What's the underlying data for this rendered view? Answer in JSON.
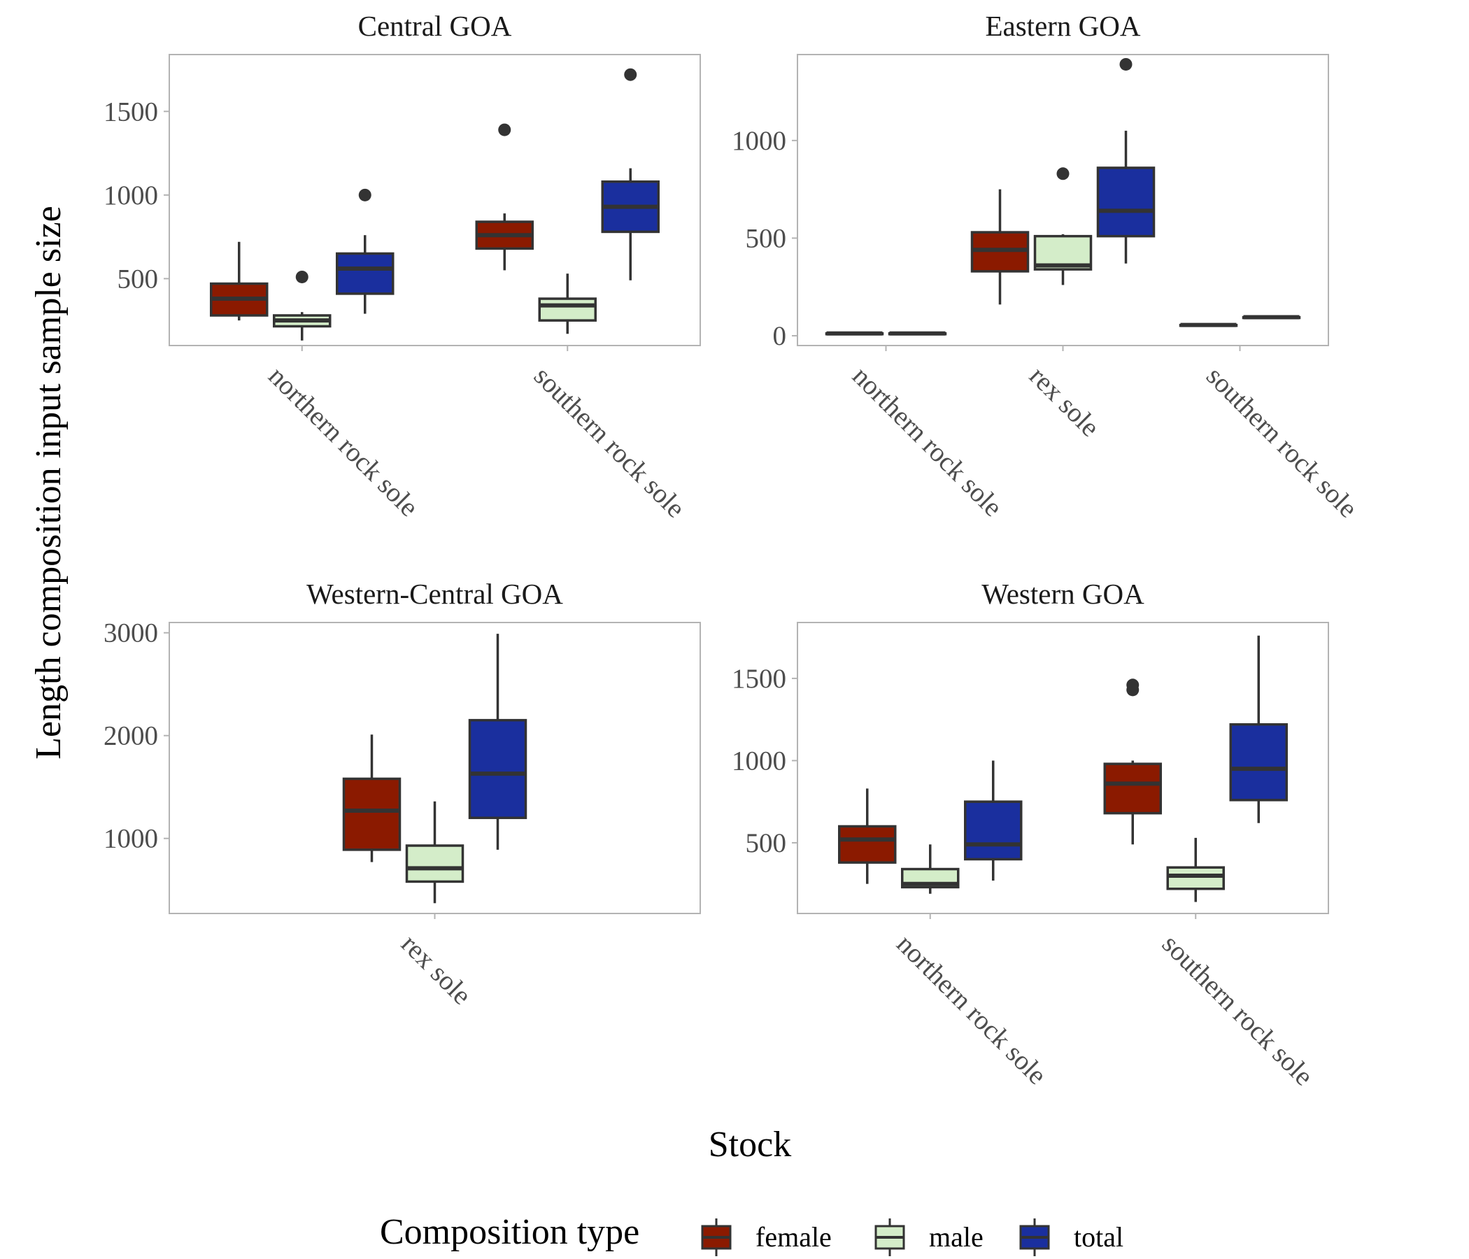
{
  "chart_data": {
    "type": "box",
    "ylabel": "Length composition input sample size",
    "xlabel": "Stock",
    "legend": {
      "title": "Composition type",
      "position": "bottom",
      "entries": [
        {
          "name": "female",
          "color": "#8B1A00"
        },
        {
          "name": "male",
          "color": "#D4EDC9"
        },
        {
          "name": "total",
          "color": "#1A2F9E"
        }
      ]
    },
    "colors": {
      "female": "#8B1A00",
      "male": "#D4EDC9",
      "total": "#1A2F9E",
      "line": "#333333",
      "panel_border": "#b3b3b3"
    },
    "grid": false,
    "panels": [
      {
        "title": "Central GOA",
        "ylim": [
          100,
          1840
        ],
        "yticks": [
          500,
          1000,
          1500
        ],
        "categories": [
          "northern rock sole",
          "southern rock sole"
        ],
        "boxes": [
          {
            "category": "northern rock sole",
            "series": "female",
            "whisker_low": 250,
            "q1": 280,
            "median": 380,
            "q3": 470,
            "whisker_high": 720,
            "outliers": []
          },
          {
            "category": "northern rock sole",
            "series": "male",
            "whisker_low": 130,
            "q1": 215,
            "median": 250,
            "q3": 280,
            "whisker_high": 300,
            "outliers": [
              510
            ]
          },
          {
            "category": "northern rock sole",
            "series": "total",
            "whisker_low": 290,
            "q1": 410,
            "median": 560,
            "q3": 650,
            "whisker_high": 760,
            "outliers": [
              1000
            ]
          },
          {
            "category": "southern rock sole",
            "series": "female",
            "whisker_low": 550,
            "q1": 680,
            "median": 760,
            "q3": 840,
            "whisker_high": 890,
            "outliers": [
              1390
            ]
          },
          {
            "category": "southern rock sole",
            "series": "male",
            "whisker_low": 170,
            "q1": 250,
            "median": 340,
            "q3": 380,
            "whisker_high": 530,
            "outliers": []
          },
          {
            "category": "southern rock sole",
            "series": "total",
            "whisker_low": 490,
            "q1": 780,
            "median": 930,
            "q3": 1080,
            "whisker_high": 1160,
            "outliers": [
              1720
            ]
          }
        ]
      },
      {
        "title": "Eastern GOA",
        "ylim": [
          -50,
          1440
        ],
        "yticks": [
          0,
          500,
          1000
        ],
        "categories": [
          "northern rock sole",
          "rex sole",
          "southern rock sole"
        ],
        "boxes": [
          {
            "category": "northern rock sole",
            "series": "female",
            "whisker_low": 12,
            "q1": 12,
            "median": 12,
            "q3": 12,
            "whisker_high": 12,
            "outliers": []
          },
          {
            "category": "northern rock sole",
            "series": "total",
            "whisker_low": 12,
            "q1": 12,
            "median": 12,
            "q3": 12,
            "whisker_high": 12,
            "outliers": []
          },
          {
            "category": "rex sole",
            "series": "female",
            "whisker_low": 160,
            "q1": 330,
            "median": 440,
            "q3": 530,
            "whisker_high": 750,
            "outliers": []
          },
          {
            "category": "rex sole",
            "series": "male",
            "whisker_low": 260,
            "q1": 340,
            "median": 360,
            "q3": 510,
            "whisker_high": 520,
            "outliers": [
              830
            ]
          },
          {
            "category": "rex sole",
            "series": "total",
            "whisker_low": 370,
            "q1": 510,
            "median": 640,
            "q3": 860,
            "whisker_high": 1050,
            "outliers": [
              1390
            ]
          },
          {
            "category": "southern rock sole",
            "series": "female",
            "whisker_low": 55,
            "q1": 55,
            "median": 55,
            "q3": 55,
            "whisker_high": 55,
            "outliers": []
          },
          {
            "category": "southern rock sole",
            "series": "total",
            "whisker_low": 95,
            "q1": 95,
            "median": 95,
            "q3": 95,
            "whisker_high": 95,
            "outliers": []
          }
        ]
      },
      {
        "title": "Western-Central GOA",
        "ylim": [
          270,
          3100
        ],
        "yticks": [
          1000,
          2000,
          3000
        ],
        "categories": [
          "rex sole"
        ],
        "boxes": [
          {
            "category": "rex sole",
            "series": "female",
            "whisker_low": 770,
            "q1": 890,
            "median": 1270,
            "q3": 1580,
            "whisker_high": 2010,
            "outliers": []
          },
          {
            "category": "rex sole",
            "series": "male",
            "whisker_low": 370,
            "q1": 580,
            "median": 710,
            "q3": 930,
            "whisker_high": 1360,
            "outliers": []
          },
          {
            "category": "rex sole",
            "series": "total",
            "whisker_low": 890,
            "q1": 1200,
            "median": 1630,
            "q3": 2150,
            "whisker_high": 2990,
            "outliers": []
          }
        ]
      },
      {
        "title": "Western GOA",
        "ylim": [
          70,
          1840
        ],
        "yticks": [
          500,
          1000,
          1500
        ],
        "categories": [
          "northern rock sole",
          "southern rock sole"
        ],
        "boxes": [
          {
            "category": "northern rock sole",
            "series": "female",
            "whisker_low": 250,
            "q1": 380,
            "median": 520,
            "q3": 600,
            "whisker_high": 830,
            "outliers": []
          },
          {
            "category": "northern rock sole",
            "series": "male",
            "whisker_low": 190,
            "q1": 230,
            "median": 250,
            "q3": 340,
            "whisker_high": 490,
            "outliers": []
          },
          {
            "category": "northern rock sole",
            "series": "total",
            "whisker_low": 270,
            "q1": 400,
            "median": 490,
            "q3": 750,
            "whisker_high": 1000,
            "outliers": []
          },
          {
            "category": "southern rock sole",
            "series": "female",
            "whisker_low": 490,
            "q1": 680,
            "median": 860,
            "q3": 980,
            "whisker_high": 1000,
            "outliers": [
              1430,
              1460
            ]
          },
          {
            "category": "southern rock sole",
            "series": "male",
            "whisker_low": 140,
            "q1": 220,
            "median": 300,
            "q3": 350,
            "whisker_high": 530,
            "outliers": []
          },
          {
            "category": "southern rock sole",
            "series": "total",
            "whisker_low": 620,
            "q1": 760,
            "median": 950,
            "q3": 1220,
            "whisker_high": 1760,
            "outliers": []
          }
        ]
      }
    ]
  }
}
